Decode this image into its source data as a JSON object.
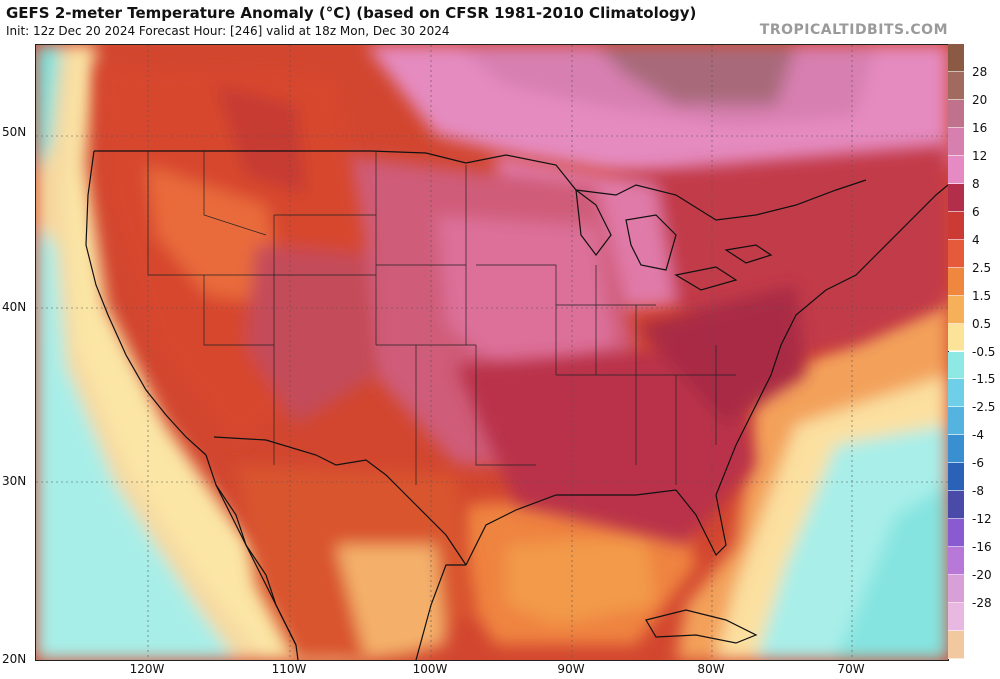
{
  "header": {
    "title": "GEFS 2-meter Temperature Anomaly (°C) (based on CFSR 1981-2010 Climatology)",
    "subtitle": "Init: 12z Dec 20 2024   Forecast Hour: [246]   valid at 18z Mon, Dec 30 2024",
    "brand": "TROPICALTIDBITS.COM"
  },
  "axes": {
    "lat_labels": [
      "50N",
      "40N",
      "30N",
      "20N"
    ],
    "lon_labels": [
      "120W",
      "110W",
      "100W",
      "90W",
      "80W",
      "70W"
    ]
  },
  "colorbar": {
    "labels": [
      "28",
      "20",
      "16",
      "12",
      "8",
      "6",
      "4",
      "2.5",
      "1.5",
      "0.5",
      "-0.5",
      "-1.5",
      "-2.5",
      "-4",
      "-6",
      "-8",
      "-12",
      "-16",
      "-20",
      "-28"
    ],
    "colors": [
      "#8a5a44",
      "#a06a5e",
      "#c0718c",
      "#d77fae",
      "#e68ac3",
      "#b32e4a",
      "#cc3a36",
      "#e55a3a",
      "#f0873f",
      "#f7b05a",
      "#fbe39a",
      "#8ee9e4",
      "#70cfe8",
      "#55b3e0",
      "#3a8fd0",
      "#2a62b8",
      "#4a4aa8",
      "#8a5ad0",
      "#b878d8",
      "#d9a0d8",
      "#e8b8e0",
      "#f2c8a0"
    ]
  }
}
